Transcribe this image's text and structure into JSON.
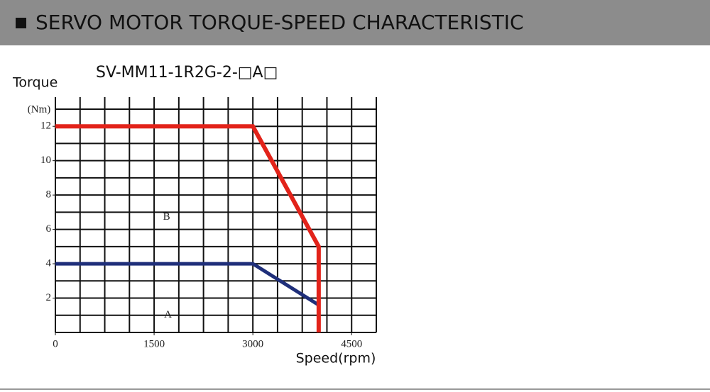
{
  "header": {
    "title": "SERVO MOTOR TORQUE-SPEED CHARACTERISTIC"
  },
  "chart_data": {
    "type": "line",
    "title": "SV-MM11-1R2G-2-□A□",
    "y_label": "Torque",
    "y_unit": "(Nm)",
    "x_label": "Speed(rpm)",
    "xlim": [
      0,
      4875
    ],
    "ylim": [
      0,
      13.7
    ],
    "xticks": [
      0,
      1500,
      3000,
      4500
    ],
    "yticks": [
      2,
      4,
      6,
      8,
      10,
      12
    ],
    "x_grid": [
      375,
      750,
      1125,
      1500,
      1875,
      2250,
      2625,
      3000,
      3375,
      3750,
      4125,
      4500,
      4875
    ],
    "y_grid": [
      1,
      2,
      3,
      4,
      5,
      6,
      7,
      8,
      9,
      10,
      11,
      12,
      13
    ],
    "grid": true,
    "series": [
      {
        "color": "#e2231a",
        "x": [
          0,
          3000,
          4000,
          4000
        ],
        "values": [
          12,
          12,
          5,
          0
        ]
      },
      {
        "color": "#1f2f7a",
        "x": [
          0,
          3000,
          4000
        ],
        "values": [
          4,
          4,
          1.6
        ]
      }
    ],
    "annotations": [
      {
        "text": "B",
        "x": 1690,
        "y": 6.7
      },
      {
        "text": "A",
        "x": 1710,
        "y": 1.0
      }
    ]
  }
}
